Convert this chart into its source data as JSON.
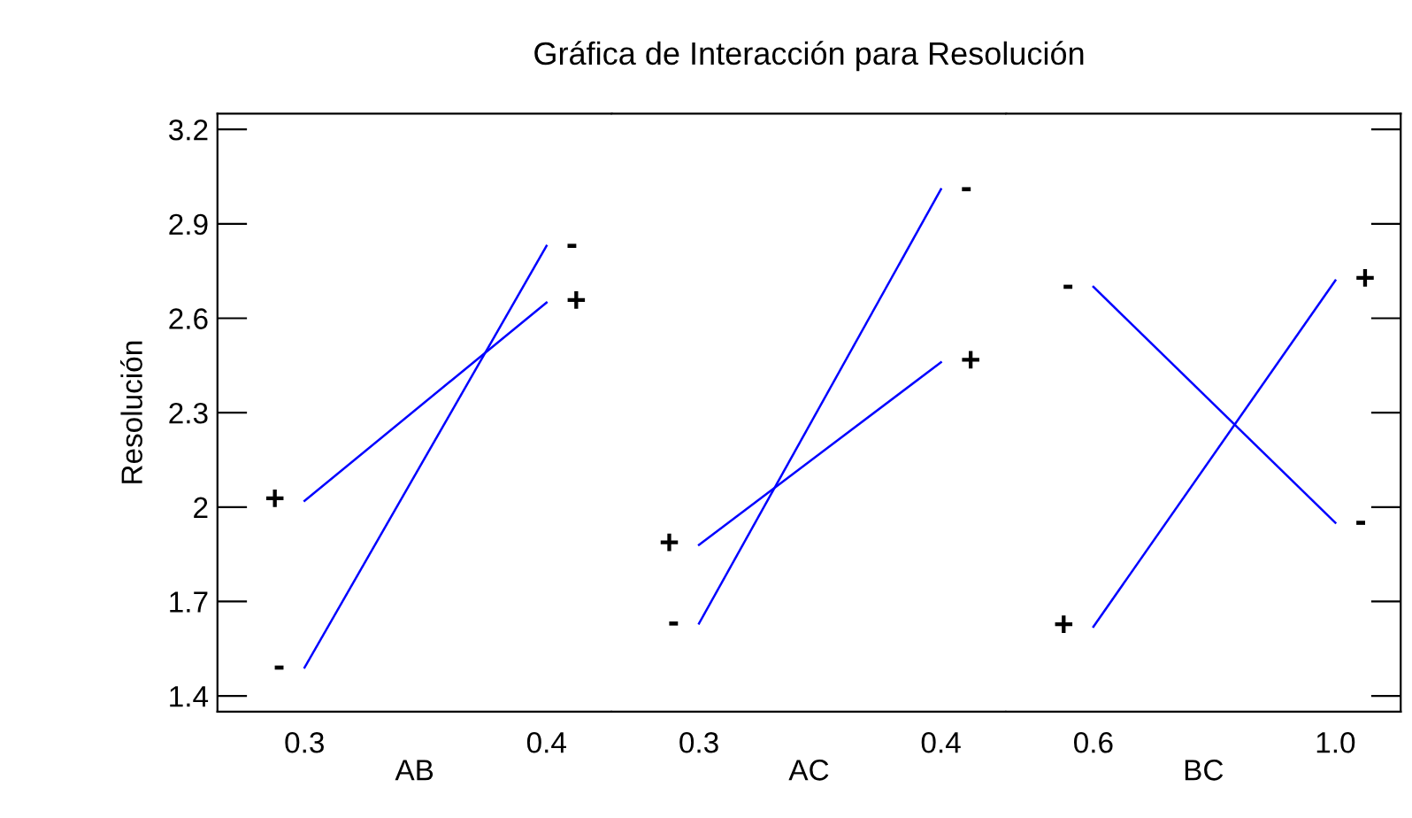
{
  "chart_data": [
    {
      "type": "line",
      "ylabel": "Resolución",
      "xlabel": "AB",
      "categories": [
        "0.3",
        "0.4"
      ],
      "ylim": [
        1.35,
        3.25
      ],
      "yticks": [
        1.4,
        1.7,
        {
          "value": 2.0,
          "label": "2"
        },
        2.3,
        2.6,
        2.9,
        3.2
      ],
      "grid": false,
      "marker": "none",
      "line_style": "solid",
      "series": [
        {
          "color": "#0000ff",
          "values": [
            1.49,
            2.83
          ],
          "value_labels": [
            "-",
            "-"
          ]
        },
        {
          "color": "#0000ff",
          "values": [
            2.02,
            2.65
          ],
          "value_labels": [
            "+",
            "+"
          ]
        }
      ]
    },
    {
      "type": "line",
      "title": "Gráfica de Interacción para Resolución",
      "xlabel": "AC",
      "categories": [
        "0.3",
        "0.4"
      ],
      "ylim": [
        1.35,
        3.25
      ],
      "tick_labels": "x",
      "grid": false,
      "marker": "none",
      "line_style": "solid",
      "series": [
        {
          "color": "#0000ff",
          "values": [
            1.63,
            3.01
          ],
          "value_labels": [
            "-",
            "-"
          ]
        },
        {
          "color": "#0000ff",
          "values": [
            1.88,
            2.46
          ],
          "value_labels": [
            "+",
            "+"
          ]
        }
      ]
    },
    {
      "type": "line",
      "xlabel": "BC",
      "categories": [
        "0.6",
        "1.0"
      ],
      "ylim": [
        1.35,
        3.25
      ],
      "tick_labels": "x",
      "grid": false,
      "marker": "none",
      "line_style": "solid",
      "series": [
        {
          "color": "#0000ff",
          "values": [
            2.7,
            1.95
          ],
          "value_labels": [
            "-",
            "-"
          ]
        },
        {
          "color": "#0000ff",
          "values": [
            1.62,
            2.72
          ],
          "value_labels": [
            "+",
            "+"
          ]
        }
      ]
    }
  ]
}
